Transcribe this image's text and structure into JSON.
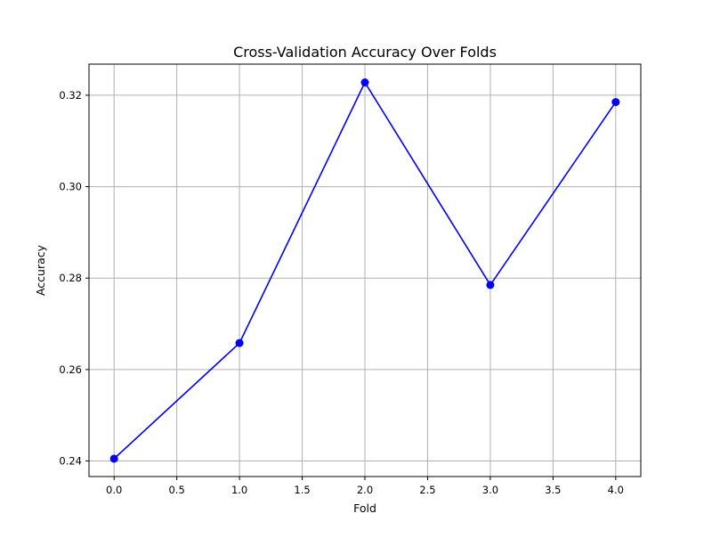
{
  "chart_data": {
    "type": "line",
    "title": "Cross-Validation Accuracy Over Folds",
    "xlabel": "Fold",
    "ylabel": "Accuracy",
    "xlim": [
      -0.2,
      4.2
    ],
    "ylim": [
      0.2366,
      0.3268
    ],
    "xticks": [
      0.0,
      0.5,
      1.0,
      1.5,
      2.0,
      2.5,
      3.0,
      3.5,
      4.0
    ],
    "xtick_labels": [
      "0.0",
      "0.5",
      "1.0",
      "1.5",
      "2.0",
      "2.5",
      "3.0",
      "3.5",
      "4.0"
    ],
    "yticks": [
      0.24,
      0.26,
      0.28,
      0.3,
      0.32
    ],
    "ytick_labels": [
      "0.24",
      "0.26",
      "0.28",
      "0.30",
      "0.32"
    ],
    "grid": true,
    "series": [
      {
        "color": "#0000ff",
        "marker": "circle",
        "x": [
          0,
          1,
          2,
          3,
          4
        ],
        "values": [
          0.2405,
          0.2658,
          0.3228,
          0.2785,
          0.3185
        ]
      }
    ]
  }
}
